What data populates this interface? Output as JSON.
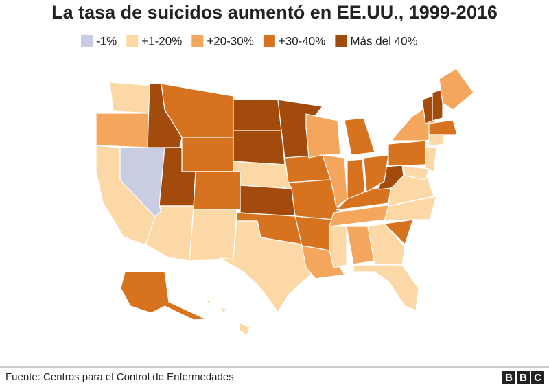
{
  "header": {
    "title": "La tasa de suicidos aumentó en EE.UU., 1999-2016"
  },
  "legend": [
    {
      "label": "-1%",
      "color": "#c9cde4"
    },
    {
      "label": "+1-20%",
      "color": "#fcd8a6"
    },
    {
      "label": "+20-30%",
      "color": "#f4a65c"
    },
    {
      "label": "+30-40%",
      "color": "#d7731f"
    },
    {
      "label": "Más del 40%",
      "color": "#a24b0d"
    }
  ],
  "footer": {
    "source": "Fuente: Centros para el Control de Enfermedades",
    "logo": [
      "B",
      "B",
      "C"
    ]
  }
}
